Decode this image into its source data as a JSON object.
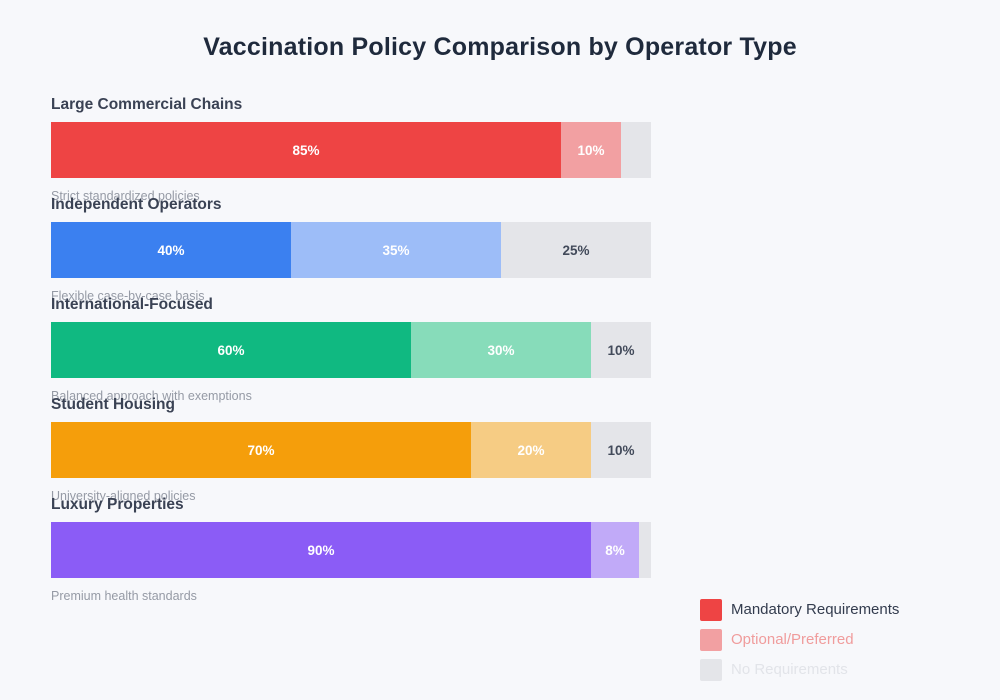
{
  "title": "Vaccination Policy Comparison by Operator Type",
  "chart_data": {
    "type": "bar",
    "variant": "horizontal-stacked",
    "title": "Vaccination Policy Comparison by Operator Type",
    "unit": "percent",
    "xlim": [
      0,
      100
    ],
    "grid": false,
    "legend_position": "bottom-right",
    "categories": [
      "Large Commercial Chains",
      "Independent Operators",
      "International-Focused",
      "Student Housing",
      "Luxury Properties"
    ],
    "category_descriptions": [
      "Strict standardized policies",
      "Flexible case-by-case basis",
      "Balanced approach with exemptions",
      "University-aligned policies",
      "Premium health standards"
    ],
    "series": [
      {
        "name": "Mandatory Requirements",
        "color": "#ee4444",
        "values": [
          85,
          40,
          60,
          70,
          90
        ]
      },
      {
        "name": "Optional/Preferred",
        "color": "#f2a0a2",
        "values": [
          10,
          35,
          30,
          20,
          8
        ]
      },
      {
        "name": "No Requirements",
        "color": "#e4e5e9",
        "values": [
          5,
          25,
          10,
          10,
          2
        ]
      }
    ]
  },
  "groups": [
    {
      "name": "Large Commercial Chains",
      "description": "Strict standardized policies",
      "segments": [
        {
          "label": "85%",
          "value": 85,
          "color": "#ee4444",
          "text_color": "#ffffff"
        },
        {
          "label": "10%",
          "value": 10,
          "color": "#f2a0a2",
          "text_color": "#ffffff"
        },
        {
          "label": "",
          "value": 5,
          "color": "#e4e5e9",
          "text_color": "#424a5a"
        }
      ]
    },
    {
      "name": "Independent Operators",
      "description": "Flexible case-by-case basis",
      "segments": [
        {
          "label": "40%",
          "value": 40,
          "color": "#3b80f0",
          "text_color": "#ffffff"
        },
        {
          "label": "35%",
          "value": 35,
          "color": "#9dbdf8",
          "text_color": "#ffffff"
        },
        {
          "label": "25%",
          "value": 25,
          "color": "#e4e5e9",
          "text_color": "#424a5a"
        }
      ]
    },
    {
      "name": "International-Focused",
      "description": "Balanced approach with exemptions",
      "segments": [
        {
          "label": "60%",
          "value": 60,
          "color": "#10b981",
          "text_color": "#ffffff"
        },
        {
          "label": "30%",
          "value": 30,
          "color": "#87dcba",
          "text_color": "#ffffff"
        },
        {
          "label": "10%",
          "value": 10,
          "color": "#e4e5e9",
          "text_color": "#424a5a"
        }
      ]
    },
    {
      "name": "Student Housing",
      "description": "University-aligned policies",
      "segments": [
        {
          "label": "70%",
          "value": 70,
          "color": "#f59e0b",
          "text_color": "#ffffff"
        },
        {
          "label": "20%",
          "value": 20,
          "color": "#f6cc84",
          "text_color": "#ffffff"
        },
        {
          "label": "10%",
          "value": 10,
          "color": "#e4e5e9",
          "text_color": "#424a5a"
        }
      ]
    },
    {
      "name": "Luxury Properties",
      "description": "Premium health standards",
      "segments": [
        {
          "label": "90%",
          "value": 90,
          "color": "#8b5cf6",
          "text_color": "#ffffff"
        },
        {
          "label": "8%",
          "value": 8,
          "color": "#c1aaf8",
          "text_color": "#ffffff"
        },
        {
          "label": "",
          "value": 2,
          "color": "#e4e5e9",
          "text_color": "#424a5a"
        }
      ]
    }
  ],
  "legend": {
    "items": [
      {
        "label": "Mandatory Requirements",
        "swatch_color": "#ee4444",
        "text_color": "#333c4e"
      },
      {
        "label": "Optional/Preferred",
        "swatch_color": "#f2a0a2",
        "text_color": "#f09c9c"
      },
      {
        "label": "No Requirements",
        "swatch_color": "#e4e5e9",
        "text_color": "#e2e4e9"
      }
    ]
  },
  "colors": {
    "background": "#f7f8fb",
    "title": "#1f2a3c",
    "heading": "#3a4254",
    "description": "#959aa5"
  }
}
